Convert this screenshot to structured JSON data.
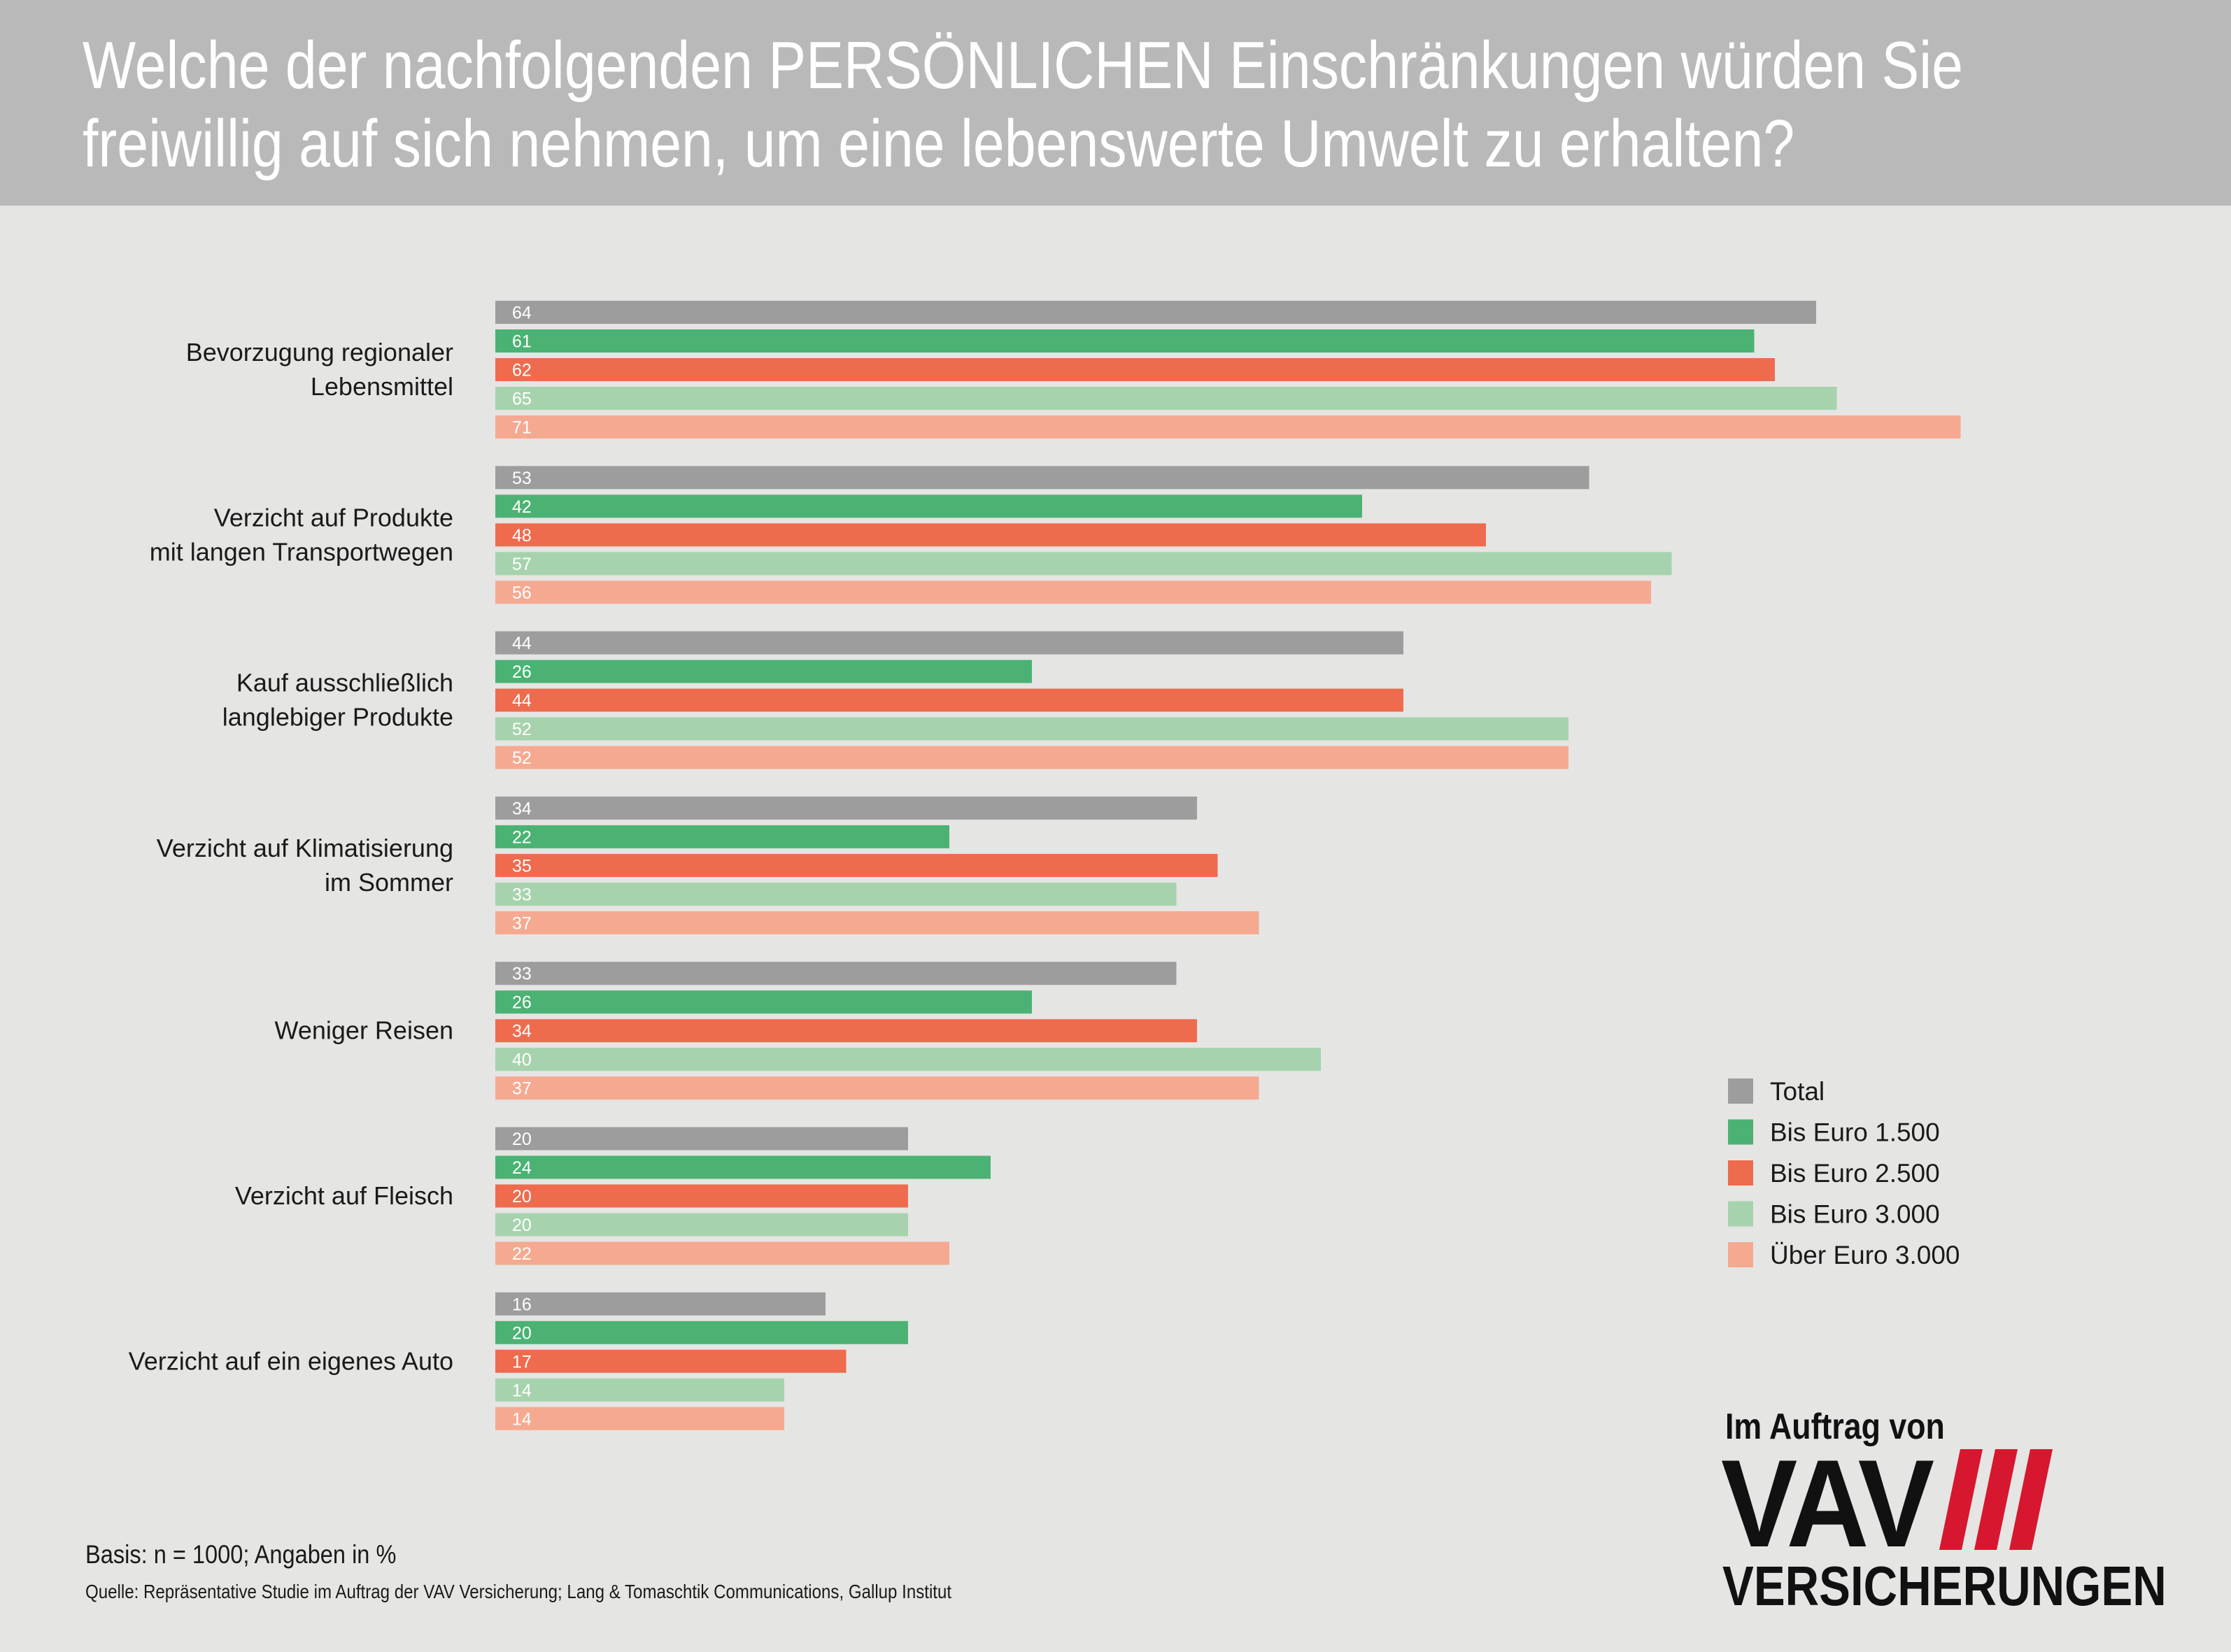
{
  "title": {
    "line1": "Welche der nachfolgenden PERSÖNLICHEN Einschränkungen würden Sie",
    "line2": "freiwillig auf sich nehmen, um eine lebenswerte Umwelt zu erhalten?"
  },
  "chart_data": {
    "type": "bar",
    "orientation": "horizontal",
    "title": "Welche der nachfolgenden PERSÖNLICHEN Einschränkungen würden Sie freiwillig auf sich nehmen, um eine lebenswerte Umwelt zu erhalten?",
    "categories": [
      [
        "Bevorzugung regionaler",
        "Lebensmittel"
      ],
      [
        "Verzicht auf Produkte",
        "mit langen Transportwegen"
      ],
      [
        "Kauf ausschließlich",
        "langlebiger Produkte"
      ],
      [
        "Verzicht auf Klimatisierung",
        "im Sommer"
      ],
      [
        "Weniger Reisen"
      ],
      [
        "Verzicht auf Fleisch"
      ],
      [
        "Verzicht auf ein eigenes Auto"
      ]
    ],
    "series": [
      {
        "name": "Total",
        "color": "#9d9d9d",
        "values": [
          64,
          53,
          44,
          34,
          33,
          20,
          16
        ]
      },
      {
        "name": "Bis Euro 1.500",
        "color": "#4bb274",
        "values": [
          61,
          42,
          26,
          22,
          26,
          24,
          20
        ]
      },
      {
        "name": "Bis Euro 2.500",
        "color": "#ee6b4e",
        "values": [
          62,
          48,
          44,
          35,
          34,
          20,
          17
        ]
      },
      {
        "name": "Bis Euro 3.000",
        "color": "#a6d3ad",
        "values": [
          65,
          57,
          52,
          33,
          40,
          20,
          14
        ]
      },
      {
        "name": "Über Euro 3.000",
        "color": "#f6a991",
        "values": [
          71,
          56,
          52,
          37,
          37,
          22,
          14
        ]
      }
    ],
    "legend_position": "right",
    "grid": false
  },
  "footer": {
    "basis": "Basis: n = 1000; Angaben in %",
    "source": "Quelle: Repräsentative Studie im Auftrag der VAV Versicherung; Lang & Tomaschtik Communications, Gallup Institut"
  },
  "logo": {
    "tagline": "Im Auftrag von",
    "name": "VAV",
    "subtitle": "VERSICHERUNGEN",
    "accent_color": "#d7172f"
  }
}
